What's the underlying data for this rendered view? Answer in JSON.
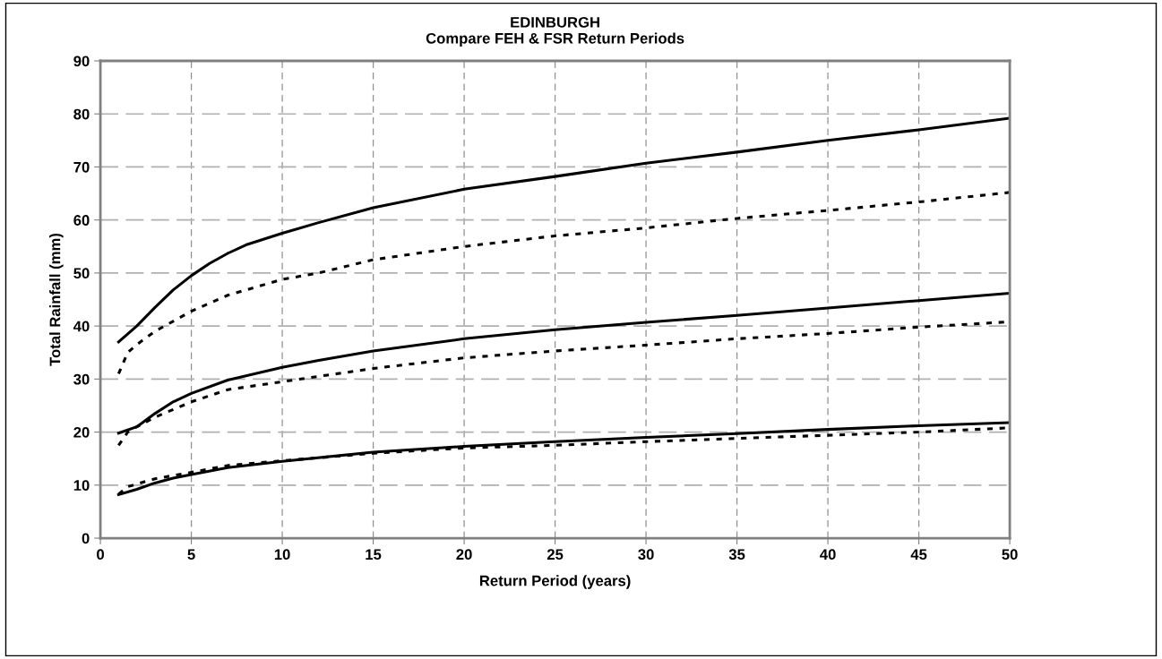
{
  "chart_data": {
    "type": "line",
    "title": "EDINBURGH\nCompare FEH & FSR Return Periods",
    "xlabel": "Return Period (years)",
    "ylabel": "Total Rainfall (mm)",
    "xlim": [
      0,
      50
    ],
    "xticks": [
      0,
      5,
      10,
      15,
      20,
      25,
      30,
      35,
      40,
      45,
      50
    ],
    "ylim": [
      0,
      90
    ],
    "yticks": [
      0,
      10,
      20,
      30,
      40,
      50,
      60,
      70,
      80,
      90
    ],
    "grid": true,
    "marker": "none",
    "series": [
      {
        "color": "#000000",
        "line_style": "solid",
        "x": [
          1,
          2,
          3,
          4,
          5,
          6,
          7,
          8,
          10,
          12,
          15,
          20,
          25,
          30,
          35,
          40,
          45,
          50
        ],
        "values": [
          37,
          40,
          43.5,
          46.8,
          49.5,
          51.8,
          53.7,
          55.3,
          57.5,
          59.5,
          62.3,
          65.8,
          68.2,
          70.7,
          72.8,
          75,
          77,
          79.2
        ]
      },
      {
        "color": "#000000",
        "line_style": "dotted",
        "x": [
          1,
          1.5,
          2,
          3,
          5,
          7,
          10,
          12,
          15,
          20,
          25,
          30,
          35,
          40,
          45,
          50
        ],
        "values": [
          31,
          35,
          36.5,
          39,
          42.8,
          45.8,
          48.8,
          50,
          52.5,
          55,
          57,
          58.5,
          60.3,
          61.8,
          63.4,
          65.2
        ]
      },
      {
        "color": "#000000",
        "line_style": "solid",
        "x": [
          1,
          2,
          3,
          4,
          5,
          7,
          10,
          12,
          15,
          20,
          25,
          30,
          35,
          40,
          45,
          50
        ],
        "values": [
          19.8,
          21,
          23.5,
          25.7,
          27.3,
          29.8,
          32.2,
          33.5,
          35.3,
          37.6,
          39.3,
          40.7,
          42,
          43.4,
          44.8,
          46.2
        ]
      },
      {
        "color": "#000000",
        "line_style": "dotted",
        "x": [
          1,
          1.5,
          2,
          3,
          5,
          7,
          10,
          15,
          20,
          25,
          30,
          35,
          40,
          45,
          50
        ],
        "values": [
          17.5,
          20,
          21,
          22.8,
          25.7,
          28,
          29.5,
          32,
          34,
          35.3,
          36.4,
          37.6,
          38.6,
          39.8,
          40.8
        ]
      },
      {
        "color": "#000000",
        "line_style": "solid",
        "x": [
          1,
          2,
          3,
          4,
          5,
          7,
          10,
          15,
          20,
          25,
          30,
          35,
          40,
          45,
          50
        ],
        "values": [
          8.2,
          9.2,
          10.4,
          11.3,
          12,
          13.3,
          14.5,
          16.2,
          17.3,
          18.2,
          19,
          19.7,
          20.5,
          21.2,
          21.8
        ]
      },
      {
        "color": "#000000",
        "line_style": "dotted",
        "x": [
          1,
          1.5,
          2,
          3,
          5,
          7,
          10,
          15,
          20,
          25,
          30,
          35,
          40,
          45,
          50
        ],
        "values": [
          8.3,
          9.7,
          10.2,
          11.2,
          12.4,
          13.7,
          14.6,
          16,
          17,
          17.5,
          18.2,
          18.8,
          19.4,
          20,
          20.8
        ]
      }
    ]
  }
}
